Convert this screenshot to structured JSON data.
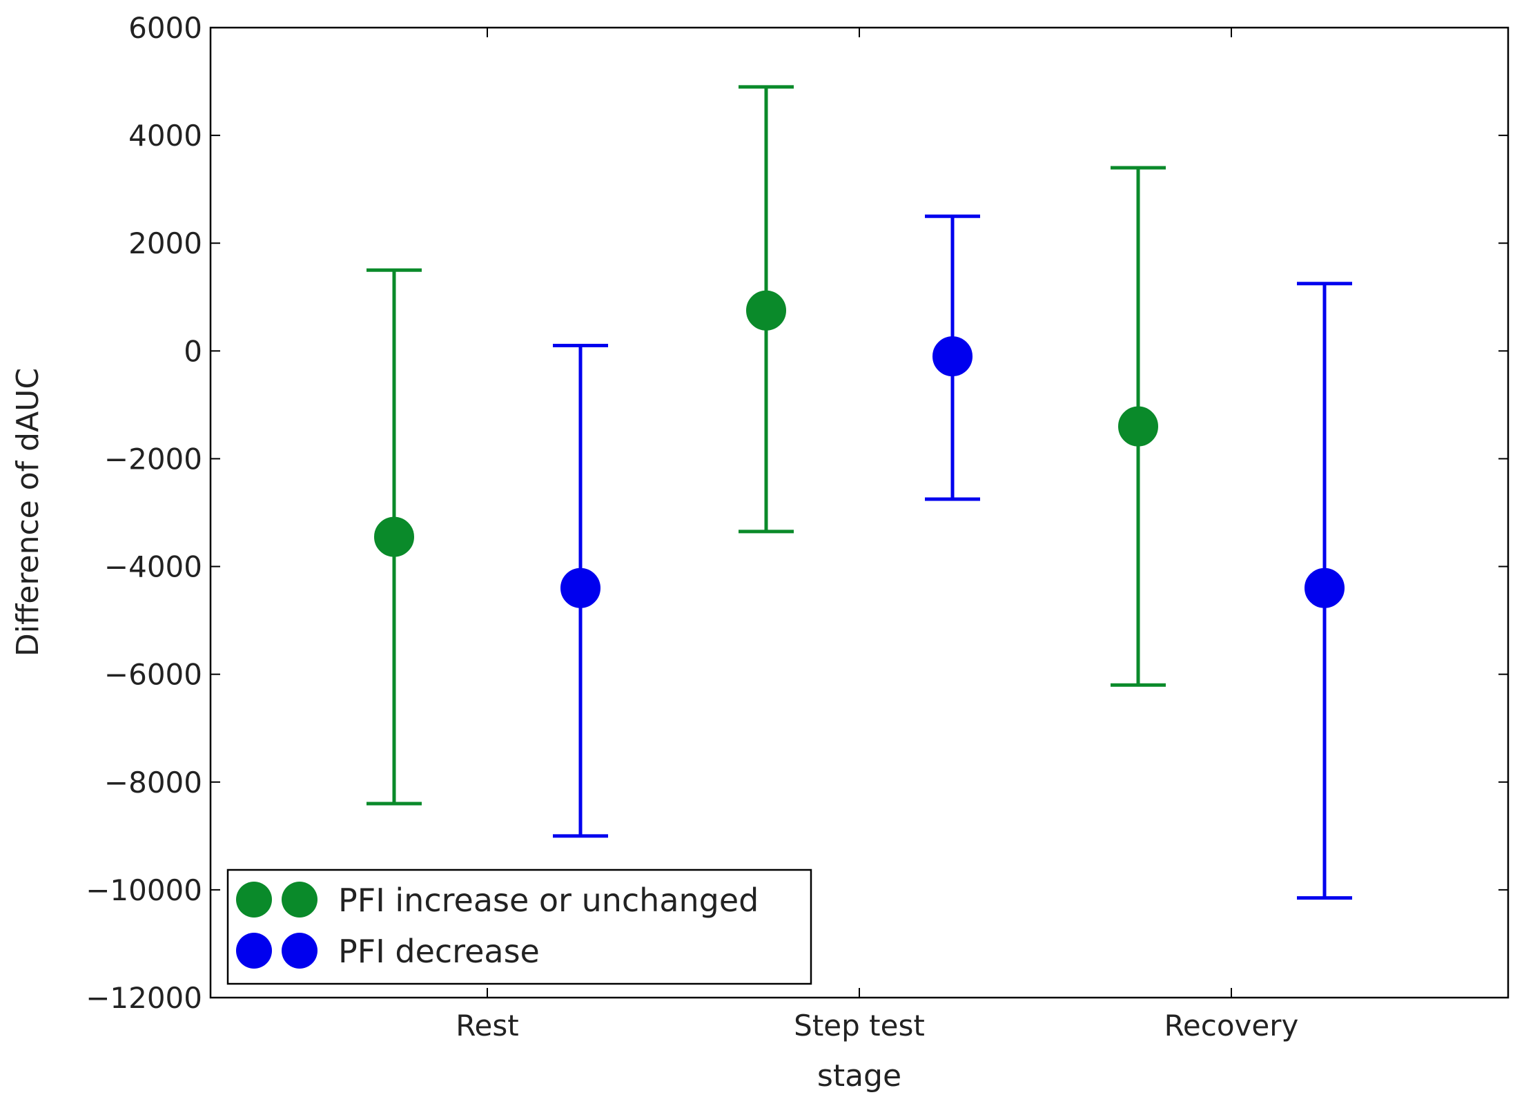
{
  "chart_data": {
    "type": "errorbar",
    "title": "",
    "xlabel": "stage",
    "ylabel": "Difference of dAUC",
    "ylim": [
      -12000,
      6000
    ],
    "yticks": [
      "6000",
      "4000",
      "2000",
      "0",
      "−2000",
      "−4000",
      "−6000",
      "−8000",
      "−10000",
      "−12000"
    ],
    "ytick_values": [
      6000,
      4000,
      2000,
      0,
      -2000,
      -4000,
      -6000,
      -8000,
      -10000,
      -12000
    ],
    "categories": [
      "Rest",
      "Step test",
      "Recovery"
    ],
    "legend_position": "lower-left",
    "series": [
      {
        "name": "PFI increase or unchanged",
        "color": "#0a8a2a",
        "points": [
          {
            "category": "Rest",
            "mean": -3450,
            "lower": -8400,
            "upper": 1500
          },
          {
            "category": "Step test",
            "mean": 750,
            "lower": -3350,
            "upper": 4900
          },
          {
            "category": "Recovery",
            "mean": -1400,
            "lower": -6200,
            "upper": 3400
          }
        ]
      },
      {
        "name": "PFI decrease",
        "color": "#0000ee",
        "points": [
          {
            "category": "Rest",
            "mean": -4400,
            "lower": -9000,
            "upper": 100
          },
          {
            "category": "Step test",
            "mean": -100,
            "lower": -2750,
            "upper": 2500
          },
          {
            "category": "Recovery",
            "mean": -4400,
            "lower": -10150,
            "upper": 1250
          }
        ]
      }
    ]
  }
}
